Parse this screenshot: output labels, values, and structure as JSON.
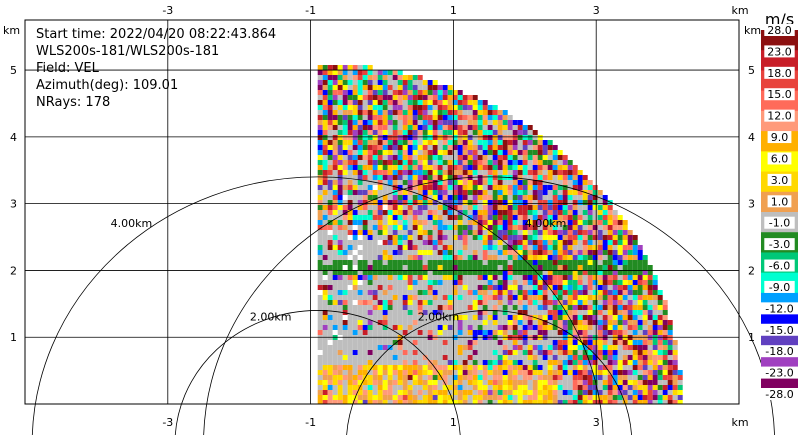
{
  "chart_data": {
    "type": "heatmap",
    "title": "",
    "info_lines": [
      "Start time: 2022/04/20 08:22:43.864",
      "WLS200s-181/WLS200s-181",
      "Field: VEL",
      "Azimuth(deg): 109.01",
      "NRays: 178"
    ],
    "x_unit": "km",
    "y_unit": "km",
    "xlim": [
      -5,
      5
    ],
    "ylim": [
      0,
      5.75
    ],
    "x_ticks": [
      "-3",
      "-1",
      "1",
      "3"
    ],
    "x_tick_values": [
      -3,
      -1,
      1,
      3
    ],
    "y_ticks": [
      "1",
      "2",
      "3",
      "4",
      "5"
    ],
    "y_tick_values": [
      1,
      2,
      3,
      4,
      5
    ],
    "range_rings_km": [
      2,
      4
    ],
    "ring_labels": [
      {
        "text": "4.00km",
        "x": -3.8,
        "y": 2.65
      },
      {
        "text": "2.00km",
        "x": -1.85,
        "y": 1.25
      },
      {
        "text": "2.00km",
        "x": 0.5,
        "y": 1.25
      },
      {
        "text": "4.00km",
        "x": 2.0,
        "y": 2.65
      }
    ],
    "sector": {
      "center_x_km": -0.9,
      "max_range_km": 5.1,
      "azimuth_start_deg": 0,
      "azimuth_end_deg": 90
    },
    "colorbar": {
      "unit": "m/s",
      "labels": [
        "28.0",
        "23.0",
        "18.0",
        "15.0",
        "12.0",
        "9.0",
        "6.0",
        "3.0",
        "1.0",
        "-1.0",
        "-3.0",
        "-6.0",
        "-9.0",
        "-12.0",
        "-15.0",
        "-18.0",
        "-23.0",
        "-28.0"
      ],
      "colors": [
        "#8b1010",
        "#c81e28",
        "#e8433c",
        "#ff6b5a",
        "#ff9a7a",
        "#ffb000",
        "#ffff00",
        "#ffd800",
        "#f0a050",
        "#bebebe",
        "#228b22",
        "#00c878",
        "#00ffd0",
        "#00a0ff",
        "#0000ff",
        "#6040c0",
        "#a040c0",
        "#800060"
      ]
    }
  }
}
